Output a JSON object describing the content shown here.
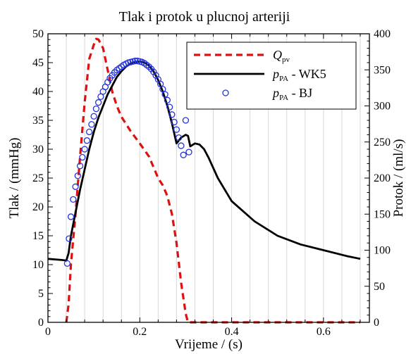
{
  "chart_data": {
    "type": "line",
    "title": "Tlak i protok u plucnoj arteriji",
    "xlabel": "Vrijeme / (s)",
    "ylabel_left": "Tlak / (mmHg)",
    "ylabel_right": "Protok / (ml/s)",
    "xlim": [
      0,
      0.7
    ],
    "ylim_left": [
      0,
      50
    ],
    "ylim_right": [
      0,
      400
    ],
    "x_ticks": [
      0,
      0.2,
      0.4,
      0.6
    ],
    "x_tick_labels": [
      "0",
      "0.2",
      "0.4",
      "0.6"
    ],
    "y_left_ticks": [
      0,
      5,
      10,
      15,
      20,
      25,
      30,
      35,
      40,
      45,
      50
    ],
    "y_left_tick_labels": [
      "0",
      "5",
      "10",
      "15",
      "20",
      "25",
      "30",
      "35",
      "40",
      "45",
      "50"
    ],
    "y_right_ticks": [
      0,
      50,
      100,
      150,
      200,
      250,
      300,
      350,
      400
    ],
    "y_right_tick_labels": [
      "0",
      "50",
      "100",
      "150",
      "200",
      "250",
      "300",
      "350",
      "400"
    ],
    "grid": "vertical-minor",
    "legend_position": "top-right",
    "colors": {
      "flow": "#dd1111",
      "pressure_wk5": "#000000",
      "pressure_bj": "#2233dd"
    },
    "series": [
      {
        "key": "flow",
        "legend_main": "Q",
        "legend_sub": "pv",
        "legend_suffix": "",
        "axis": "right",
        "style": "dashed",
        "x": [
          0.04,
          0.045,
          0.05,
          0.06,
          0.07,
          0.08,
          0.09,
          0.1,
          0.105,
          0.11,
          0.12,
          0.13,
          0.14,
          0.15,
          0.16,
          0.18,
          0.2,
          0.22,
          0.24,
          0.25,
          0.26,
          0.27,
          0.28,
          0.29,
          0.3,
          0.305,
          0.31,
          0.35,
          0.4,
          0.5,
          0.6,
          0.68
        ],
        "y": [
          0,
          25,
          80,
          150,
          230,
          305,
          365,
          385,
          393,
          392,
          380,
          350,
          320,
          300,
          285,
          265,
          248,
          230,
          200,
          190,
          175,
          150,
          110,
          55,
          12,
          0,
          0,
          0,
          0,
          0,
          0,
          0
        ]
      },
      {
        "key": "pressure_wk5",
        "legend_main": "p",
        "legend_sub": "PA",
        "legend_suffix": " - WK5",
        "axis": "left",
        "style": "solid",
        "x": [
          0,
          0.03,
          0.04,
          0.045,
          0.05,
          0.06,
          0.07,
          0.08,
          0.09,
          0.1,
          0.11,
          0.12,
          0.13,
          0.14,
          0.15,
          0.16,
          0.17,
          0.18,
          0.19,
          0.2,
          0.21,
          0.22,
          0.23,
          0.24,
          0.25,
          0.26,
          0.27,
          0.28,
          0.29,
          0.3,
          0.305,
          0.31,
          0.32,
          0.33,
          0.34,
          0.35,
          0.37,
          0.4,
          0.45,
          0.5,
          0.55,
          0.6,
          0.65,
          0.68
        ],
        "y": [
          11,
          10.8,
          10.7,
          12,
          15,
          19,
          23,
          26.5,
          30,
          33,
          35.5,
          37.5,
          39.5,
          41,
          42.5,
          43.5,
          44.3,
          44.8,
          45.1,
          45.2,
          45,
          44.5,
          43.5,
          42,
          40,
          37.5,
          34.5,
          31,
          32,
          32.5,
          32.3,
          30.5,
          31,
          30.8,
          30,
          28.5,
          25,
          21,
          17.5,
          15,
          13.5,
          12.5,
          11.5,
          11
        ]
      },
      {
        "key": "pressure_bj",
        "legend_main": "p",
        "legend_sub": "PA",
        "legend_suffix": " - BJ",
        "axis": "left",
        "style": "markers",
        "x": [
          0.042,
          0.046,
          0.05,
          0.055,
          0.06,
          0.065,
          0.07,
          0.075,
          0.08,
          0.085,
          0.09,
          0.095,
          0.1,
          0.105,
          0.11,
          0.115,
          0.12,
          0.125,
          0.13,
          0.135,
          0.14,
          0.145,
          0.15,
          0.155,
          0.16,
          0.165,
          0.17,
          0.175,
          0.18,
          0.185,
          0.19,
          0.195,
          0.2,
          0.205,
          0.21,
          0.215,
          0.22,
          0.225,
          0.23,
          0.235,
          0.24,
          0.245,
          0.25,
          0.255,
          0.26,
          0.265,
          0.27,
          0.275,
          0.28,
          0.285,
          0.29,
          0.295,
          0.3,
          0.307
        ],
        "y": [
          10.2,
          14.5,
          18.3,
          21.3,
          23.5,
          25.4,
          27.1,
          28.6,
          30,
          31.5,
          33,
          34.3,
          35.7,
          37,
          38.1,
          39.1,
          40,
          40.8,
          41.6,
          42.3,
          42.8,
          43.3,
          43.7,
          44,
          44.3,
          44.6,
          44.8,
          45,
          45.1,
          45.2,
          45.3,
          45.3,
          45.2,
          45.1,
          44.9,
          44.6,
          44.3,
          43.9,
          43.4,
          42.8,
          42.1,
          41.3,
          40.4,
          39.5,
          38.5,
          37.3,
          36,
          34.7,
          33.4,
          32,
          30.6,
          29,
          35,
          29.5
        ]
      }
    ]
  }
}
